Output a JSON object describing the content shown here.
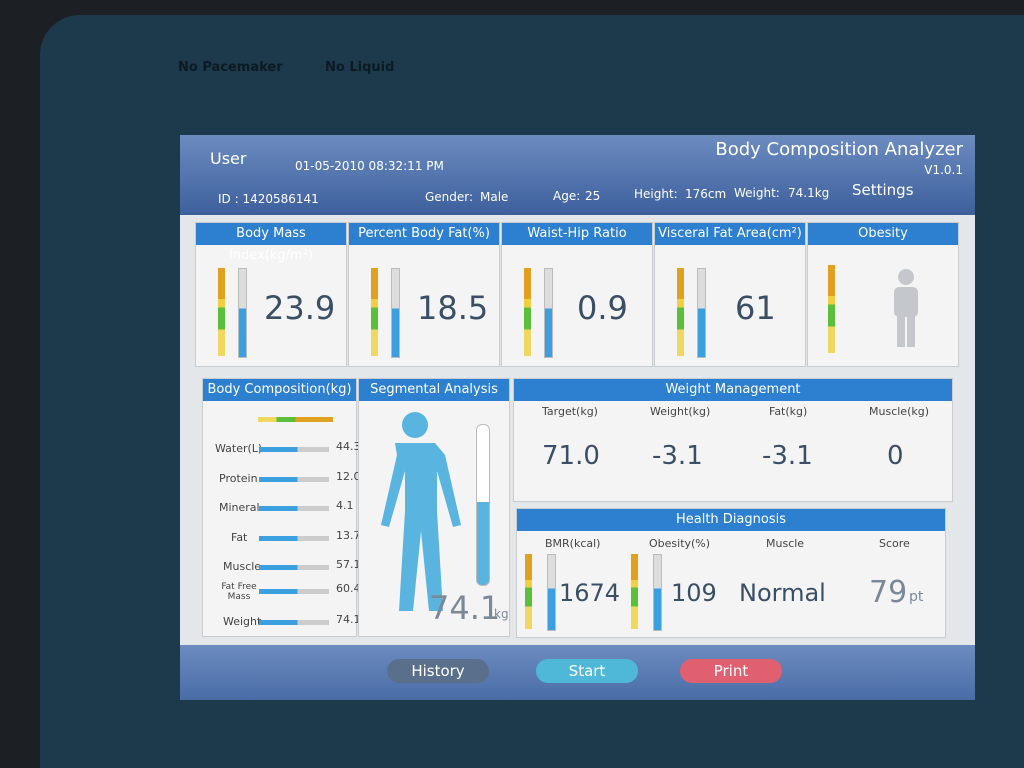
{
  "bezel": {
    "warnings": [
      "No Pacemaker",
      "No Liquid"
    ]
  },
  "header": {
    "user": "User",
    "datetime": "01-05-2010 08:32:11 PM",
    "title": "Body Composition Analyzer",
    "version": "V1.0.1",
    "id": "ID : 1420586141",
    "gender_label": "Gender:",
    "gender": "Male",
    "age_label": "Age:",
    "age": "25",
    "height_label": "Height:",
    "height": "176cm",
    "weight_label": "Weight:",
    "weight": "74.1kg",
    "settings": "Settings"
  },
  "metrics": [
    {
      "title": "Body Mass Index(kg/m²)",
      "value": "23.9"
    },
    {
      "title": "Percent Body Fat(%)",
      "value": "18.5"
    },
    {
      "title": "Waist-Hip Ratio",
      "value": "0.9"
    },
    {
      "title": "Visceral Fat Area(cm²)",
      "value": "61"
    },
    {
      "title": "Obesity"
    }
  ],
  "body_composition": {
    "title": "Body Composition(kg)",
    "rows": [
      {
        "label": "Water(L)",
        "value": "44.3"
      },
      {
        "label": "Protein",
        "value": "12.0"
      },
      {
        "label": "Mineral",
        "value": "4.1"
      },
      {
        "label": "Fat",
        "value": "13.7"
      },
      {
        "label": "Muscle",
        "value": "57.1"
      },
      {
        "label": "Fat Free Mass",
        "value": "60.4"
      },
      {
        "label": "Weight",
        "value": "74.1"
      }
    ]
  },
  "segmental": {
    "title": "Segmental Analysis",
    "value": "74.1",
    "unit": "kg"
  },
  "weight_management": {
    "title": "Weight Management",
    "columns": [
      {
        "label": "Target(kg)",
        "value": "71.0"
      },
      {
        "label": "Weight(kg)",
        "value": "-3.1"
      },
      {
        "label": "Fat(kg)",
        "value": "-3.1"
      },
      {
        "label": "Muscle(kg)",
        "value": "0"
      }
    ]
  },
  "health_diagnosis": {
    "title": "Health Diagnosis",
    "columns": [
      {
        "label": "BMR(kcal)",
        "value": "1674"
      },
      {
        "label": "Obesity(%)",
        "value": "109"
      },
      {
        "label": "Muscle",
        "value": "Normal"
      },
      {
        "label": "Score",
        "value": "79",
        "unit": "pt"
      }
    ]
  },
  "buttons": [
    "History",
    "Start",
    "Print"
  ]
}
